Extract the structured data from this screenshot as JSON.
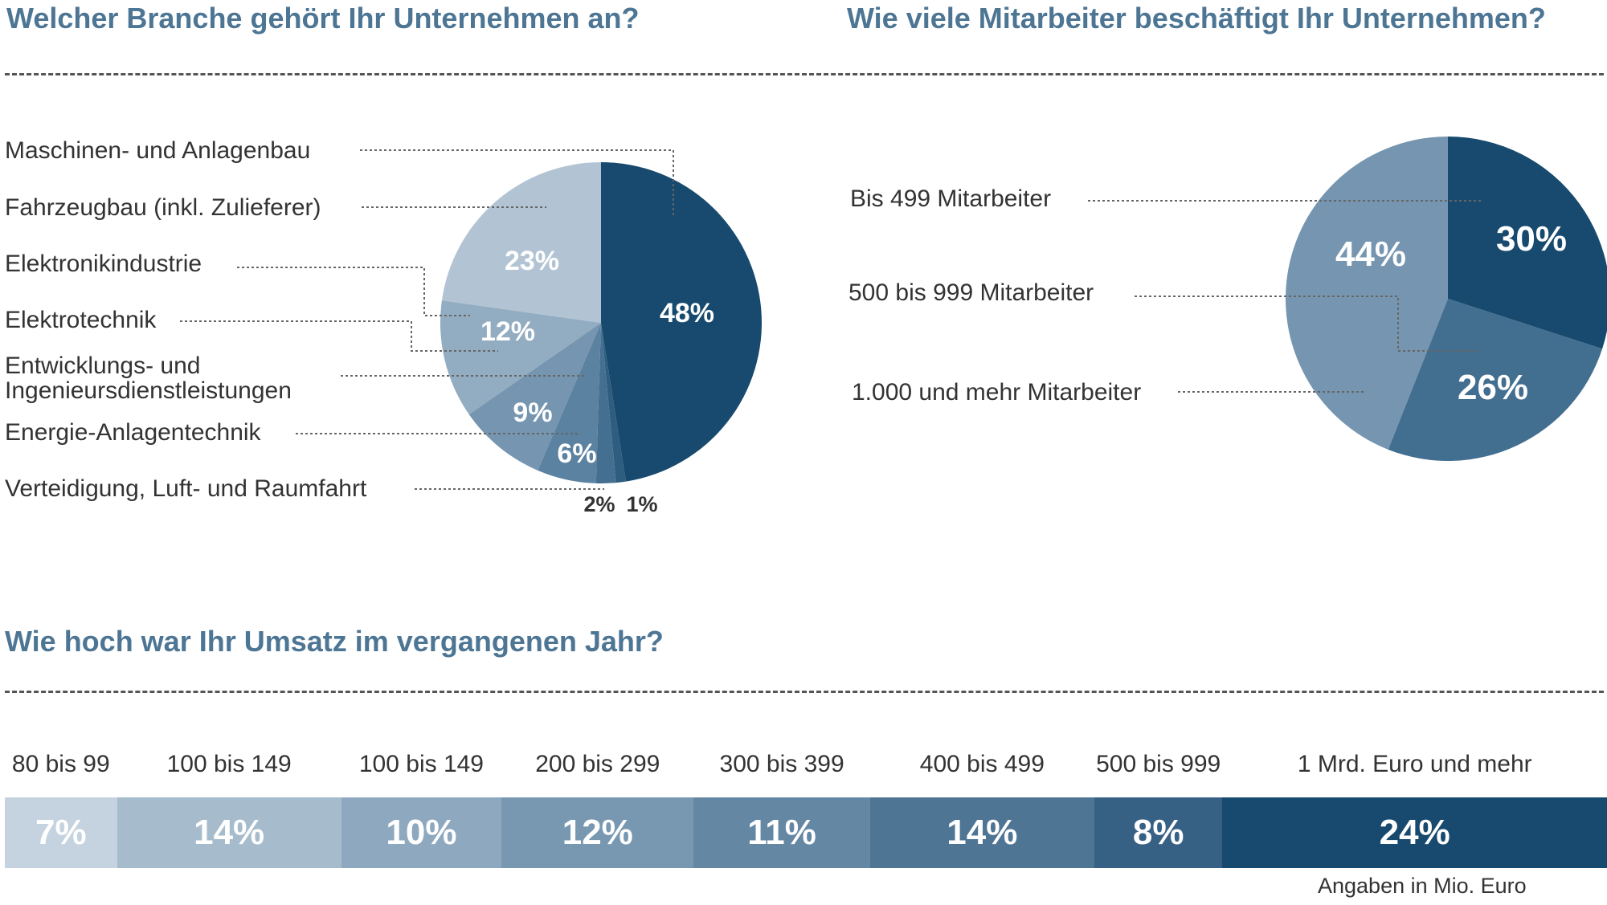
{
  "titles": {
    "branche": "Welcher Branche gehört Ihr Unternehmen an?",
    "mitarbeiter": "Wie viele Mitarbeiter beschäftigt Ihr Unternehmen?",
    "umsatz": "Wie hoch war Ihr Umsatz im vergangenen Jahr?"
  },
  "chart_data": [
    {
      "type": "pie",
      "title": "Welcher Branche gehört Ihr Unternehmen an?",
      "slices": [
        {
          "label": "Maschinen- und Anlagenbau",
          "value": 48,
          "display": "48%",
          "color": "#174a6e"
        },
        {
          "label": "Verteidigung, Luft- und Raumfahrt",
          "value": 1,
          "display": "1%",
          "color": "#2e5d80"
        },
        {
          "label": "Energie-Anlagentechnik",
          "value": 2,
          "display": "2%",
          "color": "#446f90"
        },
        {
          "label": "Entwicklungs- und Ingenieursdienstleistungen",
          "value": 6,
          "display": "6%",
          "color": "#5b82a0"
        },
        {
          "label": "Elektrotechnik",
          "value": 9,
          "display": "9%",
          "color": "#7595b0"
        },
        {
          "label": "Elektronikindustrie",
          "value": 12,
          "display": "12%",
          "color": "#92acc2"
        },
        {
          "label": "Fahrzeugbau (inkl. Zulieferer)",
          "value": 23,
          "display": "23%",
          "color": "#b2c4d3"
        }
      ]
    },
    {
      "type": "pie",
      "title": "Wie viele Mitarbeiter beschäftigt Ihr Unternehmen?",
      "slices": [
        {
          "label": "Bis 499 Mitarbeiter",
          "value": 30,
          "display": "30%",
          "color": "#174a6e"
        },
        {
          "label": "500 bis 999 Mitarbeiter",
          "value": 26,
          "display": "26%",
          "color": "#426e90"
        },
        {
          "label": "1.000 und mehr Mitarbeiter",
          "value": 44,
          "display": "44%",
          "color": "#7595b0"
        }
      ]
    },
    {
      "type": "bar",
      "orientation": "stacked-horizontal",
      "title": "Wie hoch war Ihr Umsatz im vergangenen Jahr?",
      "categories": [
        "80 bis 99",
        "100 bis 149",
        "100 bis 149",
        "200 bis 299",
        "300 bis 399",
        "400 bis 499",
        "500 bis 999",
        "1 Mrd. Euro und mehr"
      ],
      "values": [
        7,
        14,
        10,
        12,
        11,
        14,
        8,
        24
      ],
      "labels": [
        "7%",
        "14%",
        "10%",
        "12%",
        "11%",
        "14%",
        "8%",
        "24%"
      ],
      "colors": [
        "#c4d3df",
        "#a6bccd",
        "#8ea9bf",
        "#7898b2",
        "#6487a4",
        "#4f7595",
        "#366185",
        "#174a6e"
      ],
      "note": "Angaben in Mio. Euro"
    }
  ]
}
